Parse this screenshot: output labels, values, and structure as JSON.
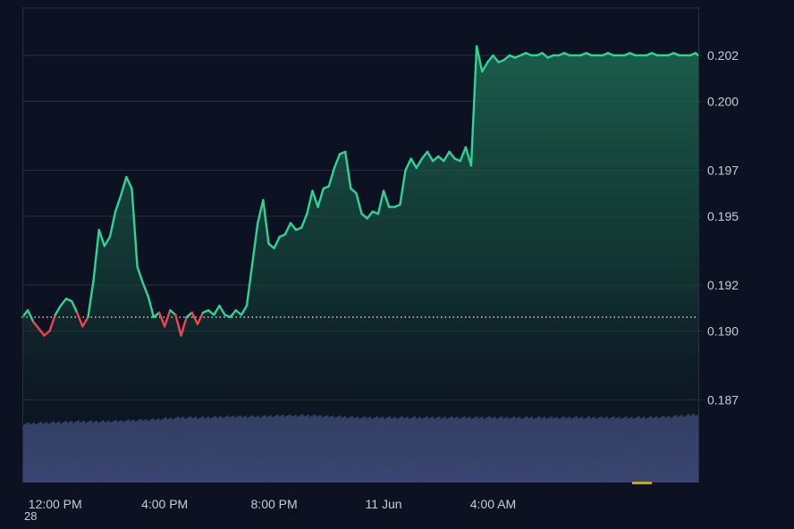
{
  "chart_data": {
    "type": "line",
    "title": "",
    "xlabel": "",
    "ylabel": "",
    "y_ticks": [
      "0.202",
      "0.200",
      "0.197",
      "0.195",
      "0.192",
      "0.190",
      "0.187"
    ],
    "y_tick_values": [
      0.2021,
      0.2001,
      0.1971,
      0.1951,
      0.1921,
      0.1901,
      0.1871
    ],
    "ylim": [
      0.1835,
      0.2042
    ],
    "x_ticks": [
      "12:00 PM",
      "4:00 PM",
      "8:00 PM",
      "11 Jun",
      "4:00 AM"
    ],
    "x_tick_hours": [
      0,
      4,
      8,
      12,
      16
    ],
    "xlim_hours": [
      -1.2,
      23.5
    ],
    "baseline": 0.1907,
    "grid": true,
    "series": [
      {
        "x_hours": [
          -1.2,
          -1.0,
          -0.8,
          -0.6,
          -0.4,
          -0.2,
          0.0,
          0.2,
          0.4,
          0.6,
          0.8,
          1.0,
          1.2,
          1.4,
          1.6,
          1.8,
          2.0,
          2.2,
          2.4,
          2.6,
          2.8,
          3.0,
          3.2,
          3.4,
          3.6,
          3.8,
          4.0,
          4.2,
          4.4,
          4.6,
          4.8,
          5.0,
          5.2,
          5.4,
          5.6,
          5.8,
          6.0,
          6.2,
          6.4,
          6.6,
          6.8,
          7.0,
          7.2,
          7.4,
          7.6,
          7.8,
          8.0,
          8.2,
          8.4,
          8.6,
          8.8,
          9.0,
          9.2,
          9.4,
          9.6,
          9.8,
          10.0,
          10.2,
          10.4,
          10.6,
          10.8,
          11.0,
          11.2,
          11.4,
          11.6,
          11.8,
          12.0,
          12.2,
          12.4,
          12.6,
          12.8,
          13.0,
          13.2,
          13.4,
          13.6,
          13.8,
          14.0,
          14.2,
          14.4,
          14.6,
          14.8,
          15.0,
          15.2,
          15.4,
          15.6,
          15.8,
          16.0,
          16.2,
          16.4,
          16.6,
          16.8,
          17.0,
          17.2,
          17.4,
          17.6,
          17.8,
          18.0,
          18.2,
          18.4,
          18.6,
          18.8,
          19.0,
          19.2,
          19.4,
          19.6,
          19.8,
          20.0,
          20.2,
          20.4,
          20.6,
          20.8,
          21.0,
          21.2,
          21.4,
          21.6,
          21.8,
          22.0,
          22.2,
          22.4,
          22.6,
          22.8,
          23.0,
          23.2,
          23.4,
          23.5
        ],
        "values": [
          0.1907,
          0.191,
          0.1905,
          0.1902,
          0.1899,
          0.1901,
          0.1908,
          0.1912,
          0.1915,
          0.1914,
          0.1909,
          0.1903,
          0.1907,
          0.1923,
          0.1945,
          0.1938,
          0.1942,
          0.1953,
          0.196,
          0.1968,
          0.1963,
          0.1929,
          0.1922,
          0.1916,
          0.1907,
          0.1909,
          0.1903,
          0.191,
          0.1908,
          0.1899,
          0.1907,
          0.1909,
          0.1904,
          0.1909,
          0.191,
          0.1908,
          0.1912,
          0.1908,
          0.1907,
          0.191,
          0.1908,
          0.1912,
          0.193,
          0.1948,
          0.1958,
          0.1939,
          0.1937,
          0.1942,
          0.1943,
          0.1948,
          0.1945,
          0.1946,
          0.1952,
          0.1962,
          0.1955,
          0.1963,
          0.1964,
          0.1972,
          0.1978,
          0.1979,
          0.1963,
          0.1961,
          0.1952,
          0.195,
          0.1953,
          0.1952,
          0.1962,
          0.1955,
          0.1955,
          0.1956,
          0.1971,
          0.1976,
          0.1972,
          0.1976,
          0.1979,
          0.1975,
          0.1977,
          0.1975,
          0.1979,
          0.1976,
          0.1975,
          0.1981,
          0.1973,
          0.2025,
          0.2014,
          0.2018,
          0.2021,
          0.2018,
          0.2019,
          0.2021,
          0.202,
          0.2021,
          0.2022,
          0.2021,
          0.2021,
          0.2022,
          0.202,
          0.2021,
          0.2021,
          0.2022,
          0.2021,
          0.2021,
          0.2021,
          0.2022,
          0.2021,
          0.2021,
          0.2021,
          0.2022,
          0.2021,
          0.2021,
          0.2021,
          0.2022,
          0.2021,
          0.2021,
          0.2021,
          0.2022,
          0.2021,
          0.2021,
          0.2021,
          0.2022,
          0.2021,
          0.2021,
          0.2021,
          0.2022,
          0.2021
        ]
      }
    ],
    "volume": {
      "relative_levels": [
        0.56,
        0.57,
        0.58,
        0.58,
        0.59,
        0.6,
        0.62,
        0.62,
        0.63,
        0.63,
        0.64,
        0.64,
        0.63,
        0.62,
        0.62,
        0.62,
        0.62,
        0.62,
        0.62,
        0.62,
        0.62,
        0.62,
        0.62,
        0.62,
        0.62,
        0.63,
        0.65
      ]
    },
    "colors": {
      "up": "#2ed494",
      "down": "#f0454f",
      "fill_top": "#1e6b53",
      "volume": "#3b4670",
      "grid": "#273041",
      "baseline": "#d9dde4",
      "text": "#c7ccd6",
      "background": "#0c1221"
    }
  },
  "stray_label": "28"
}
